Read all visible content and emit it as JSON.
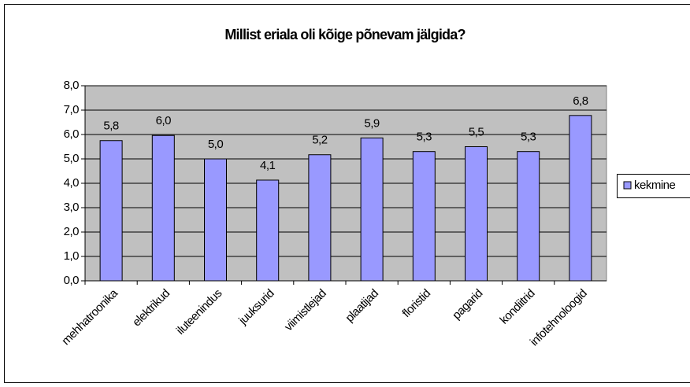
{
  "chart_data": {
    "type": "bar",
    "title": "Millist eriala oli kõige põnevam jälgida?",
    "categories": [
      "mehhatroonika",
      "elektrikud",
      "iluteenindus",
      "juuksurid",
      "viimistlejad",
      "plaatijad",
      "floristid",
      "pagarid",
      "kondiitrid",
      "infotehnoloogid"
    ],
    "series": [
      {
        "name": "kekmine",
        "color": "#9999ff",
        "values": [
          5.75,
          5.96,
          5.0,
          4.13,
          5.17,
          5.86,
          5.3,
          5.5,
          5.3,
          6.78
        ],
        "value_labels": [
          "5,8",
          "6,0",
          "5,0",
          "4,1",
          "5,2",
          "5,9",
          "5,3",
          "5,5",
          "5,3",
          "6,8"
        ]
      }
    ],
    "ylim": [
      0,
      8
    ],
    "yticks": [
      {
        "value": 0,
        "label": "0,0"
      },
      {
        "value": 1,
        "label": "1,0"
      },
      {
        "value": 2,
        "label": "2,0"
      },
      {
        "value": 3,
        "label": "3,0"
      },
      {
        "value": 4,
        "label": "4,0"
      },
      {
        "value": 5,
        "label": "5,0"
      },
      {
        "value": 6,
        "label": "6,0"
      },
      {
        "value": 7,
        "label": "7,0"
      },
      {
        "value": 8,
        "label": "8,0"
      }
    ],
    "grid": true,
    "plot_background": "#c0c0c0",
    "legend": "right"
  }
}
